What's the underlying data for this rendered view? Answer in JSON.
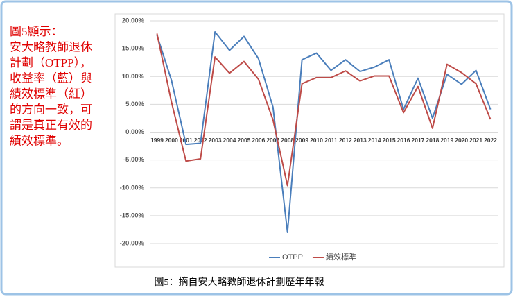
{
  "caption": "圖5：摘自安大略教師退休計劃歷年年報",
  "chart_data": {
    "type": "line",
    "annotations": [
      "圖5顯示：",
      "安大略教師退休",
      "計劃（OTPP），",
      "收益率（藍）與",
      "績效標準（紅）",
      "的方向一致，可",
      "謂是真正有效的",
      "績效標準。"
    ],
    "categories": [
      "1999",
      "2000",
      "2001",
      "2002",
      "2003",
      "2004",
      "2005",
      "2006",
      "2007",
      "2008",
      "2009",
      "2010",
      "2011",
      "2012",
      "2013",
      "2014",
      "2015",
      "2016",
      "2017",
      "2018",
      "2019",
      "2020",
      "2021",
      "2022"
    ],
    "series": [
      {
        "name": "OTPP",
        "color": "#4a7ebb",
        "values": [
          17.4,
          9.3,
          -2.2,
          -2.0,
          18.0,
          14.7,
          17.2,
          13.2,
          4.5,
          -18.0,
          13.0,
          14.2,
          11.1,
          13.0,
          10.9,
          11.7,
          13.0,
          4.1,
          9.7,
          2.5,
          10.4,
          8.6,
          11.1,
          4.1
        ]
      },
      {
        "name": "績效標準",
        "color": "#be4b48",
        "values": [
          17.7,
          5.4,
          -5.2,
          -4.8,
          13.5,
          10.6,
          12.7,
          9.5,
          2.2,
          -9.6,
          8.7,
          9.8,
          9.8,
          11.0,
          9.2,
          10.1,
          10.1,
          3.5,
          8.2,
          0.7,
          12.2,
          10.7,
          8.7,
          2.3
        ]
      }
    ],
    "ylim": [
      -20,
      20
    ],
    "yticks": [
      {
        "value": -20,
        "label": "-20.00%"
      },
      {
        "value": -15,
        "label": "-15.00%"
      },
      {
        "value": -10,
        "label": "-10.00%"
      },
      {
        "value": -5,
        "label": "-5.00%"
      },
      {
        "value": 0,
        "label": "0.00%"
      },
      {
        "value": 5,
        "label": "5.00%"
      },
      {
        "value": 10,
        "label": "10.00%"
      },
      {
        "value": 15,
        "label": "15.00%"
      },
      {
        "value": 20,
        "label": "20.00%"
      }
    ],
    "grid": true,
    "legend": "bottom"
  }
}
